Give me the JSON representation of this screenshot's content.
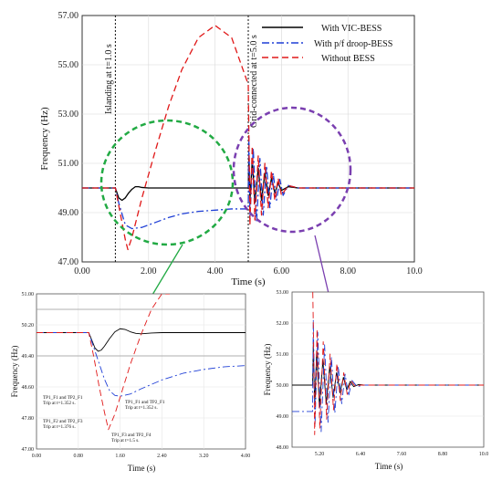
{
  "chart_data": [
    {
      "type": "line",
      "xlabel": "Time (s)",
      "ylabel": "Frequency (Hz)",
      "xlim": [
        0,
        10
      ],
      "ylim": [
        47,
        57
      ],
      "x_ticks": [
        "0.00",
        "2.00",
        "4.00",
        "6.00",
        "8.00",
        "10.0"
      ],
      "y_ticks": [
        "47.00",
        "49.00",
        "51.00",
        "53.00",
        "55.00",
        "57.00"
      ],
      "legend_position": "top-right",
      "annotations": [
        "Islanding at t=1.0 s",
        "Grid-connected at t=5.0 s"
      ],
      "series": [
        {
          "name": "With VIC-BESS",
          "color": "#000000",
          "dash": "solid",
          "x": [
            0,
            1.0,
            1.1,
            1.2,
            1.3,
            1.4,
            1.5,
            1.6,
            1.7,
            1.8,
            2.0,
            3.0,
            4.0,
            5.0,
            5.02,
            5.05,
            5.12,
            5.2,
            5.3,
            5.4,
            5.5,
            5.6,
            5.7,
            5.8,
            5.9,
            6.0,
            6.2,
            6.5,
            10.0
          ],
          "y": [
            50.0,
            50.0,
            49.6,
            49.5,
            49.6,
            49.8,
            49.95,
            50.05,
            50.05,
            50.02,
            50.0,
            50.0,
            50.0,
            50.0,
            51.3,
            49.5,
            51.1,
            49.4,
            50.8,
            49.5,
            50.6,
            49.7,
            50.4,
            49.8,
            50.2,
            49.9,
            50.05,
            50.0,
            50.0
          ]
        },
        {
          "name": "With p/f droop-BESS",
          "color": "#1f3fd6",
          "dash": "dashdot",
          "x": [
            0,
            1.0,
            1.1,
            1.3,
            1.5,
            1.8,
            2.2,
            2.6,
            3.0,
            3.5,
            4.0,
            4.5,
            5.0,
            5.02,
            5.05,
            5.15,
            5.25,
            5.35,
            5.45,
            5.55,
            5.65,
            5.75,
            5.85,
            5.95,
            6.05,
            6.2,
            6.5,
            10.0
          ],
          "y": [
            50.0,
            50.0,
            49.4,
            48.5,
            48.35,
            48.4,
            48.6,
            48.8,
            48.95,
            49.05,
            49.1,
            49.15,
            49.15,
            52.1,
            48.8,
            51.6,
            48.6,
            51.2,
            48.9,
            50.9,
            49.2,
            50.6,
            49.5,
            50.35,
            49.7,
            50.1,
            50.0,
            50.0
          ]
        },
        {
          "name": "Without BESS",
          "color": "#e01818",
          "dash": "dashed",
          "x": [
            0,
            1.0,
            1.1,
            1.2,
            1.3,
            1.376,
            1.5,
            1.8,
            2.2,
            2.6,
            3.0,
            3.5,
            4.0,
            4.5,
            5.0,
            5.02,
            5.05,
            5.12,
            5.2,
            5.3,
            5.4,
            5.5,
            5.6,
            5.7,
            5.8,
            5.9,
            6.0,
            6.2,
            6.5,
            10.0
          ],
          "y": [
            50.0,
            50.0,
            49.3,
            48.6,
            47.9,
            47.5,
            48.0,
            49.6,
            51.5,
            53.3,
            54.8,
            56.1,
            56.6,
            56.1,
            54.2,
            52.0,
            48.5,
            51.7,
            48.7,
            51.3,
            48.9,
            51.0,
            49.2,
            50.7,
            49.5,
            50.4,
            49.7,
            50.1,
            50.0,
            50.0
          ]
        }
      ]
    },
    {
      "type": "line",
      "xlabel": "Time (s)",
      "ylabel": "Frequency (Hz)",
      "xlim": [
        0,
        4
      ],
      "ylim": [
        47,
        51
      ],
      "x_ticks": [
        "0.00",
        "0.80",
        "1.60",
        "2.40",
        "3.20",
        "4.00"
      ],
      "y_ticks": [
        "47.00",
        "47.80",
        "48.60",
        "49.40",
        "50.20",
        "51.00"
      ],
      "threshold_lines": [
        49.4,
        50.6
      ],
      "annotations": [
        "TP1_F1 and TP2_F1\nTrip at t=1.352 s.",
        "TP1_F2 and TP2_F3\nTrip at t=1.376 s.",
        "TP1_F1 and TP2_F1\nTrip at t=1.352 s.",
        "TP1_F3 and TP2_F4\nTrip at t=1.5 s."
      ],
      "series": [
        {
          "name": "With VIC-BESS",
          "color": "#000000",
          "dash": "solid",
          "x": [
            0,
            1.0,
            1.06,
            1.12,
            1.18,
            1.24,
            1.3,
            1.4,
            1.5,
            1.6,
            1.7,
            1.8,
            1.9,
            2.0,
            2.2,
            2.4,
            4.0
          ],
          "y": [
            50.0,
            50.0,
            49.8,
            49.6,
            49.52,
            49.55,
            49.65,
            49.85,
            50.02,
            50.1,
            50.08,
            50.02,
            49.98,
            49.97,
            49.99,
            50.0,
            50.0
          ]
        },
        {
          "name": "With p/f droop-BESS",
          "color": "#1f3fd6",
          "dash": "dashdot",
          "x": [
            0,
            1.0,
            1.1,
            1.2,
            1.3,
            1.4,
            1.5,
            1.6,
            1.8,
            2.0,
            2.4,
            2.8,
            3.2,
            3.6,
            4.0
          ],
          "y": [
            50.0,
            50.0,
            49.6,
            49.2,
            48.8,
            48.5,
            48.38,
            48.36,
            48.42,
            48.55,
            48.78,
            48.95,
            49.05,
            49.12,
            49.15
          ]
        },
        {
          "name": "Without BESS",
          "color": "#e01818",
          "dash": "dashed",
          "x": [
            0,
            1.0,
            1.1,
            1.2,
            1.3,
            1.376,
            1.5,
            1.65,
            1.8,
            2.0,
            2.2,
            2.4,
            2.55
          ],
          "y": [
            50.0,
            50.0,
            49.35,
            48.6,
            47.95,
            47.5,
            47.9,
            48.55,
            49.2,
            49.95,
            50.6,
            51.0,
            51.0
          ]
        }
      ]
    },
    {
      "type": "line",
      "xlabel": "Time (s)",
      "ylabel": "Frequency (Hz)",
      "xlim": [
        4.4,
        10.0
      ],
      "ylim": [
        48,
        53
      ],
      "x_ticks": [
        "5.20",
        "6.40",
        "7.60",
        "8.80",
        "10.0"
      ],
      "y_ticks": [
        "48.00",
        "49.00",
        "50.00",
        "51.00",
        "52.00",
        "53.00"
      ],
      "series": [
        {
          "name": "With VIC-BESS",
          "color": "#000000",
          "dash": "solid",
          "x": [
            4.4,
            5.0,
            5.02,
            5.06,
            5.12,
            5.2,
            5.3,
            5.4,
            5.5,
            5.6,
            5.7,
            5.8,
            5.9,
            6.0,
            6.1,
            6.2,
            6.35,
            6.5,
            10.0
          ],
          "y": [
            50.0,
            50.0,
            51.3,
            49.4,
            51.1,
            49.3,
            50.8,
            49.4,
            50.6,
            49.6,
            50.4,
            49.75,
            50.25,
            49.85,
            50.12,
            49.95,
            50.02,
            50.0,
            50.0
          ]
        },
        {
          "name": "With p/f droop-BESS",
          "color": "#1f3fd6",
          "dash": "dashdot",
          "x": [
            4.4,
            5.0,
            5.02,
            5.07,
            5.15,
            5.25,
            5.35,
            5.45,
            5.55,
            5.65,
            5.75,
            5.85,
            5.95,
            6.05,
            6.15,
            6.3,
            6.5,
            10.0
          ],
          "y": [
            49.15,
            49.15,
            52.1,
            48.7,
            51.7,
            48.5,
            51.3,
            48.8,
            50.9,
            49.1,
            50.6,
            49.4,
            50.35,
            49.65,
            50.15,
            49.95,
            50.0,
            50.0
          ]
        },
        {
          "name": "Without BESS",
          "color": "#e01818",
          "dash": "dashed",
          "x": [
            5.0,
            5.005,
            5.02,
            5.06,
            5.13,
            5.21,
            5.31,
            5.41,
            5.51,
            5.61,
            5.71,
            5.81,
            5.91,
            6.01,
            6.12,
            6.25,
            6.4,
            10.0
          ],
          "y": [
            53.0,
            53.0,
            52.0,
            48.4,
            51.8,
            48.6,
            51.4,
            48.9,
            51.0,
            49.2,
            50.7,
            49.5,
            50.4,
            49.7,
            50.15,
            49.95,
            50.0,
            50.0
          ]
        }
      ]
    }
  ]
}
